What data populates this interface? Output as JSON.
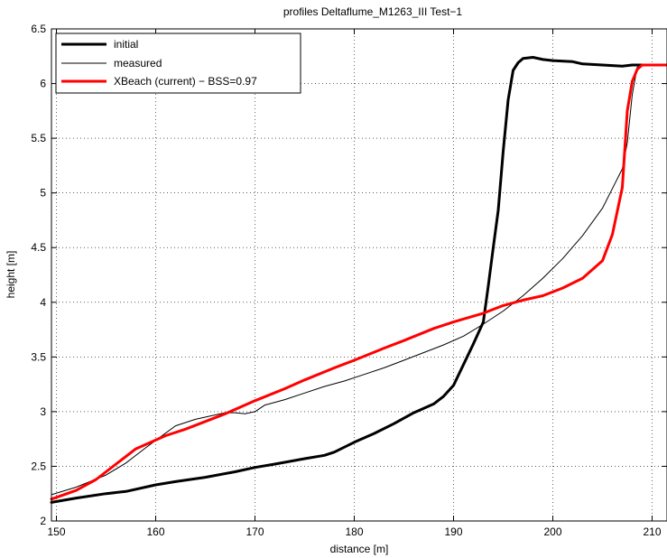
{
  "chart_data": {
    "type": "line",
    "title": "profiles Deltaflume_M1263_III Test−1",
    "xlabel": "distance [m]",
    "ylabel": "height [m]",
    "xlim": [
      149.5,
      211.5
    ],
    "ylim": [
      2,
      6.5
    ],
    "xticks": [
      150,
      160,
      170,
      180,
      190,
      200,
      210
    ],
    "yticks": [
      2,
      2.5,
      3,
      3.5,
      4,
      4.5,
      5,
      5.5,
      6,
      6.5
    ],
    "ytick_labels": [
      "2",
      "2.5",
      "3",
      "3.5",
      "4",
      "4.5",
      "5",
      "5.5",
      "6",
      "6.5"
    ],
    "grid": true,
    "grid_style": "dotted",
    "legend_position": "top-left",
    "series": [
      {
        "name": "initial",
        "color": "#000000",
        "style": "thick",
        "x": [
          149.5,
          152,
          155,
          157,
          160,
          162,
          165,
          168,
          170,
          172,
          175,
          177,
          178,
          180,
          182,
          184,
          186,
          188,
          189,
          190,
          191,
          192,
          193,
          193.5,
          194,
          194.5,
          195,
          195.5,
          196,
          196.5,
          197,
          198,
          199,
          200,
          202,
          203,
          205,
          207,
          208,
          209,
          211.5
        ],
        "y": [
          2.17,
          2.21,
          2.25,
          2.27,
          2.33,
          2.36,
          2.4,
          2.45,
          2.49,
          2.52,
          2.57,
          2.6,
          2.63,
          2.72,
          2.8,
          2.89,
          2.99,
          3.07,
          3.14,
          3.24,
          3.43,
          3.62,
          3.82,
          4.15,
          4.5,
          4.84,
          5.38,
          5.85,
          6.12,
          6.19,
          6.23,
          6.24,
          6.22,
          6.21,
          6.2,
          6.18,
          6.17,
          6.16,
          6.17,
          6.17,
          6.17
        ]
      },
      {
        "name": "measured",
        "color": "#000000",
        "style": "thin",
        "x": [
          149.5,
          152,
          155,
          157,
          159,
          160.5,
          162,
          164,
          165.5,
          167,
          168,
          169,
          170,
          171,
          173,
          175,
          177,
          179,
          181,
          183,
          185,
          187,
          189,
          191,
          193,
          195,
          197,
          199,
          201,
          203,
          205,
          206,
          207,
          207.5,
          208,
          208.5,
          209,
          211.5
        ],
        "y": [
          2.24,
          2.31,
          2.42,
          2.53,
          2.67,
          2.77,
          2.87,
          2.93,
          2.96,
          2.99,
          2.99,
          2.98,
          3.0,
          3.06,
          3.11,
          3.17,
          3.23,
          3.28,
          3.34,
          3.4,
          3.47,
          3.54,
          3.61,
          3.69,
          3.8,
          3.92,
          4.06,
          4.22,
          4.4,
          4.61,
          4.86,
          5.04,
          5.22,
          5.46,
          5.9,
          6.15,
          6.17,
          6.17
        ]
      },
      {
        "name": "XBeach (current) − BSS=0.97",
        "color": "#ff0000",
        "style": "thick",
        "x": [
          149.5,
          152,
          154,
          156,
          158,
          160,
          161,
          163,
          165,
          167,
          170,
          173,
          175,
          178,
          180,
          183,
          185,
          188,
          190,
          193,
          195,
          197,
          199,
          201,
          203,
          205,
          206,
          207,
          207.5,
          208,
          208.5,
          209,
          211.5
        ],
        "y": [
          2.2,
          2.28,
          2.38,
          2.52,
          2.66,
          2.74,
          2.78,
          2.84,
          2.91,
          2.98,
          3.1,
          3.21,
          3.29,
          3.4,
          3.47,
          3.58,
          3.65,
          3.76,
          3.82,
          3.9,
          3.97,
          4.02,
          4.06,
          4.13,
          4.22,
          4.38,
          4.62,
          5.05,
          5.75,
          6.02,
          6.13,
          6.17,
          6.17
        ]
      }
    ]
  }
}
